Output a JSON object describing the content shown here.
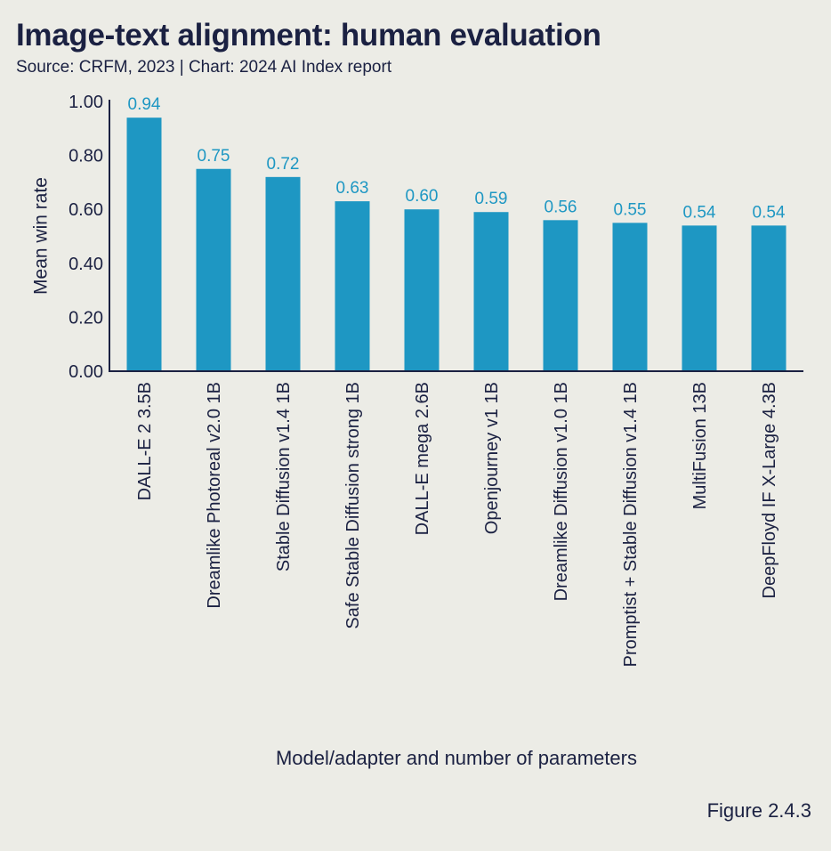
{
  "header": {
    "title": "Image-text alignment: human evaluation",
    "subtitle": "Source: CRFM, 2023 | Chart: 2024 AI Index report"
  },
  "footer": {
    "figure_label": "Figure 2.4.3"
  },
  "colors": {
    "bar": "#1E97C3",
    "value_label": "#1E97C3",
    "text": "#1B2142",
    "axis": "#1B2142",
    "background": "#ECECE6"
  },
  "chart_data": {
    "type": "bar",
    "title": "Image-text alignment: human evaluation",
    "xlabel": "Model/adapter and number of parameters",
    "ylabel": "Mean win rate",
    "ylim": [
      0,
      1
    ],
    "yticks": [
      "0.00",
      "0.20",
      "0.40",
      "0.60",
      "0.80",
      "1.00"
    ],
    "grid": false,
    "categories": [
      "DALL-E 2 3.5B",
      "Dreamlike Photoreal v2.0 1B",
      "Stable Diffusion v1.4 1B",
      "Safe Stable Diffusion strong 1B",
      "DALL-E mega 2.6B",
      "Openjourney v1 1B",
      "Dreamlike Diffusion v1.0 1B",
      "Promptist + Stable Diffusion v1.4 1B",
      "MultiFusion 13B",
      "DeepFloyd IF X-Large 4.3B"
    ],
    "values": [
      0.94,
      0.75,
      0.72,
      0.63,
      0.6,
      0.59,
      0.56,
      0.55,
      0.54,
      0.54
    ],
    "value_labels": [
      "0.94",
      "0.75",
      "0.72",
      "0.63",
      "0.60",
      "0.59",
      "0.56",
      "0.55",
      "0.54",
      "0.54"
    ]
  }
}
